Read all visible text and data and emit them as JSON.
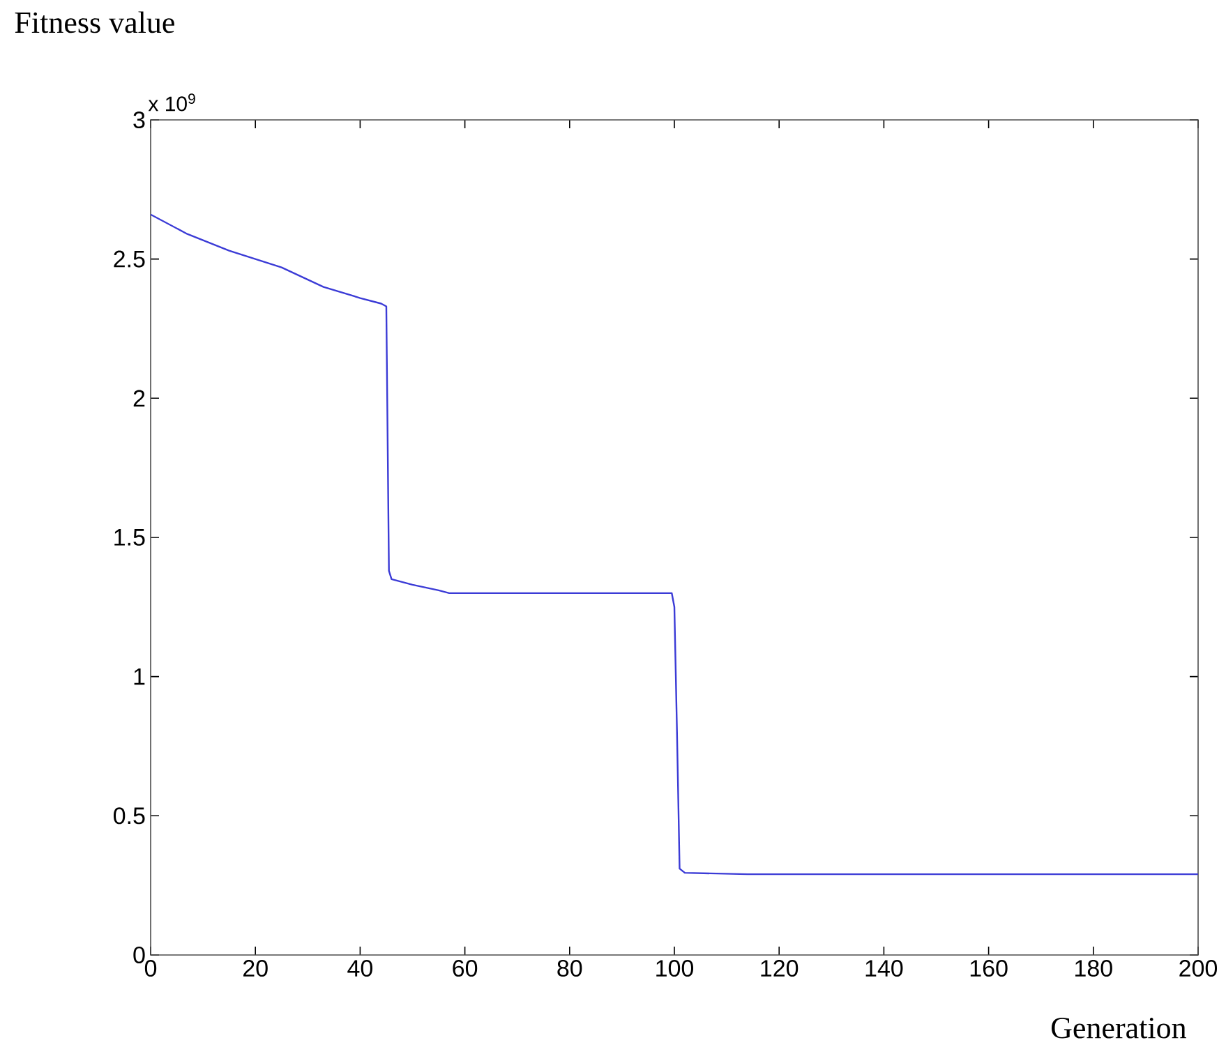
{
  "chart_data": {
    "type": "line",
    "ylabel": "Fitness value",
    "xlabel": "Generation",
    "annotations": [
      "x 10$^{9}$"
    ],
    "xlim": [
      0,
      200
    ],
    "ylim": [
      0,
      3
    ],
    "xticks": [
      0,
      20,
      40,
      60,
      80,
      100,
      120,
      140,
      160,
      180,
      200
    ],
    "yticks": [
      0,
      0.5,
      1,
      1.5,
      2,
      2.5,
      3
    ],
    "grid": false,
    "series": [
      {
        "color": "#3b3bd6",
        "x": [
          0,
          7,
          15,
          25,
          33,
          40,
          44,
          45,
          45.5,
          46,
          50,
          55,
          57,
          99.5,
          100,
          100.5,
          101,
          102,
          114,
          200
        ],
        "values": [
          2.66,
          2.59,
          2.53,
          2.47,
          2.4,
          2.36,
          2.34,
          2.33,
          1.38,
          1.35,
          1.33,
          1.31,
          1.3,
          1.3,
          1.25,
          0.8,
          0.31,
          0.295,
          0.29,
          0.29
        ]
      }
    ]
  }
}
